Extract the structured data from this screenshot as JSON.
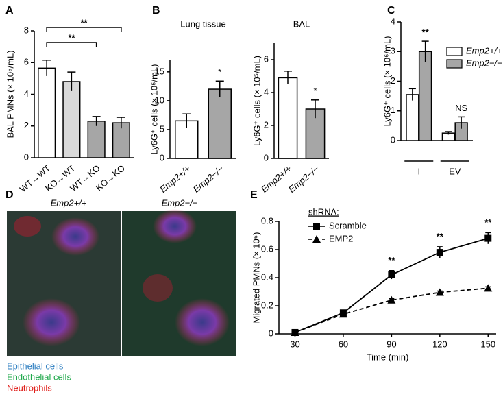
{
  "panel_letters": [
    "A",
    "B",
    "C",
    "D",
    "E"
  ],
  "image_panel": {
    "labels": [
      "Emp2+/+",
      "Emp2−/−"
    ],
    "legend": [
      {
        "text": "Epithelial cells",
        "color": "#2f7fc1"
      },
      {
        "text": "Endothelial cells",
        "color": "#1fa84a"
      },
      {
        "text": "Neutrophils",
        "color": "#e0201b"
      }
    ]
  },
  "chart_data": [
    {
      "type": "bar",
      "ylabel": "BAL PMNs (× 10⁵/mL)",
      "categories": [
        "WT→WT",
        "KO→WT",
        "WT→KO",
        "KO→KO"
      ],
      "values": [
        5.65,
        4.8,
        2.3,
        2.2
      ],
      "errors": [
        0.5,
        0.6,
        0.3,
        0.35
      ],
      "colors": [
        "#ffffff",
        "#d9d9d9",
        "#a6a6a6",
        "#a6a6a6"
      ],
      "ylim": [
        0,
        8
      ],
      "yticks": [
        0,
        2,
        4,
        6,
        8
      ],
      "annotations": [
        "**",
        "**"
      ]
    },
    {
      "type": "bar",
      "title": "Lung tissue",
      "ylabel": "Ly6G⁺ cells (× 10⁵/mL)",
      "categories": [
        "Emp2+/+",
        "Emp2−/−"
      ],
      "values": [
        6.5,
        12.0
      ],
      "errors": [
        1.2,
        1.4
      ],
      "colors": [
        "#ffffff",
        "#a6a6a6"
      ],
      "ylim": [
        0,
        17
      ],
      "yticks": [
        0,
        5,
        10,
        15
      ],
      "annotations": [
        "*"
      ]
    },
    {
      "type": "bar",
      "title": "BAL",
      "ylabel": "Ly6G⁺ cells (× 10⁵/mL)",
      "categories": [
        "Emp2+/+",
        "Emp2−/−"
      ],
      "values": [
        4.9,
        3.0
      ],
      "errors": [
        0.4,
        0.55
      ],
      "colors": [
        "#ffffff",
        "#a6a6a6"
      ],
      "ylim": [
        0,
        7
      ],
      "yticks": [
        0,
        2,
        4,
        6
      ],
      "annotations": [
        "*"
      ]
    },
    {
      "type": "bar",
      "ylabel": "Ly6G⁺ cells (× 10⁶/mL)",
      "categories": [
        "I",
        "EV"
      ],
      "series": [
        {
          "name": "Emp2+/+",
          "color": "#ffffff",
          "values": [
            1.55,
            0.25
          ],
          "errors": [
            0.2,
            0.05
          ]
        },
        {
          "name": "Emp2−/−",
          "color": "#a6a6a6",
          "values": [
            3.0,
            0.6
          ],
          "errors": [
            0.35,
            0.2
          ]
        }
      ],
      "ylim": [
        0,
        4
      ],
      "yticks": [
        0,
        1,
        2,
        3,
        4
      ],
      "annotations": [
        "**",
        "NS"
      ]
    },
    {
      "type": "line",
      "xlabel": "Time (min)",
      "ylabel": "Migrated PMNs (× 10⁶)",
      "legend_title": "shRNA:",
      "x": [
        30,
        60,
        90,
        120,
        150
      ],
      "series": [
        {
          "name": "Scramble",
          "color": "#000000",
          "marker": "square",
          "line_style": "solid",
          "values": [
            0.01,
            0.15,
            0.42,
            0.58,
            0.68
          ],
          "errors": [
            0.01,
            0.01,
            0.03,
            0.04,
            0.04
          ]
        },
        {
          "name": "EMP2",
          "color": "#000000",
          "marker": "triangle",
          "line_style": "dashed",
          "values": [
            0.01,
            0.14,
            0.24,
            0.295,
            0.325
          ],
          "errors": [
            0.005,
            0.01,
            0.01,
            0.01,
            0.01
          ]
        }
      ],
      "xlim": [
        20,
        155
      ],
      "xticks": [
        30,
        60,
        90,
        120,
        150
      ],
      "ylim": [
        0,
        0.8
      ],
      "yticks": [
        0,
        0.2,
        0.4,
        0.6,
        0.8
      ],
      "annotations": [
        "**",
        "**",
        "**"
      ]
    }
  ]
}
